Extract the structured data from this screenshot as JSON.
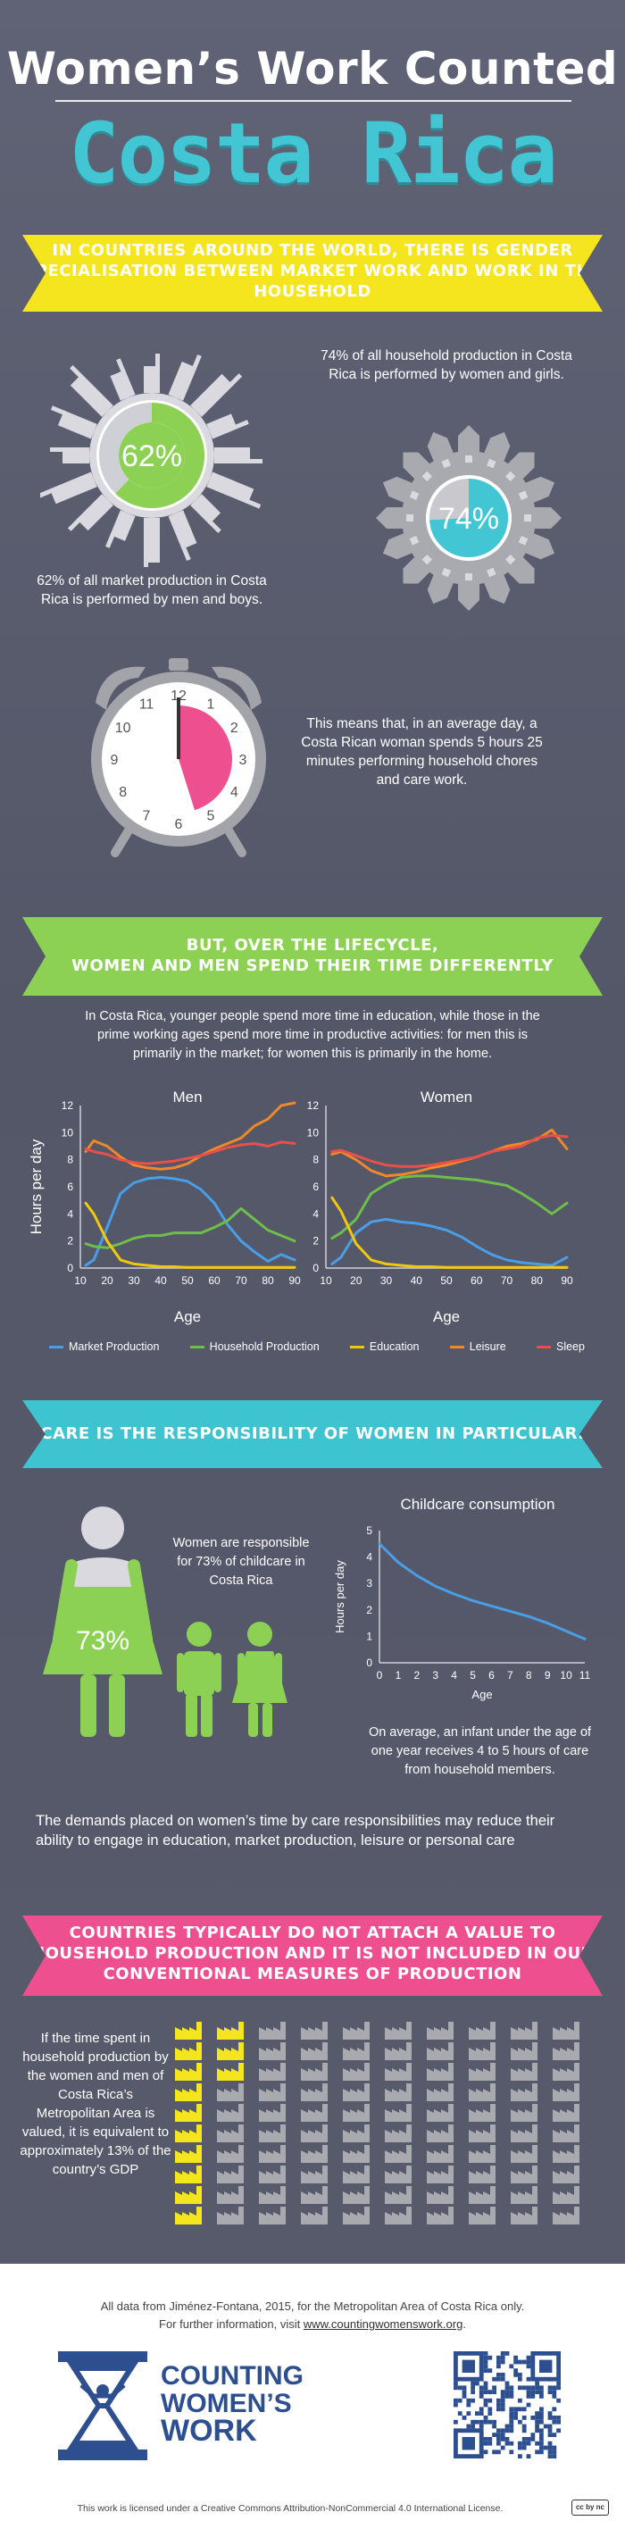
{
  "header": {
    "title_line1": "Women’s Work Counted",
    "title_line2": "Costa Rica"
  },
  "banner1": "IN COUNTRIES AROUND THE WORLD, THERE IS GENDER SPECIALISATION BETWEEN MARKET WORK AND WORK IN THE HOUSEHOLD",
  "market": {
    "percent_label": "62%",
    "value": 62,
    "caption": "62% of all market production in Costa Rica is performed by men and boys."
  },
  "household": {
    "percent_label": "74%",
    "value": 74,
    "caption": "74% of all household production in Costa Rica is performed by women and girls."
  },
  "clock": {
    "caption": "This means that, in an average day, a Costa Rican woman spends 5 hours 25 minutes performing household chores and care work.",
    "hours": 5.4167,
    "numbers": [
      "12",
      "1",
      "2",
      "3",
      "4",
      "5",
      "6",
      "7",
      "8",
      "9",
      "10",
      "11"
    ]
  },
  "banner2": {
    "line1": "BUT, OVER THE LIFECYCLE,",
    "line2": "WOMEN AND MEN SPEND THEIR TIME DIFFERENTLY"
  },
  "lifecycle_text": "In Costa Rica, younger people spend more time in education, while those in the prime working ages spend more time in productive activities: for men this is primarily in the market; for women this is primarily in the home.",
  "legend": [
    {
      "name": "Market Production",
      "color": "#4a9ee8"
    },
    {
      "name": "Household Production",
      "color": "#6dbf4a"
    },
    {
      "name": "Education",
      "color": "#f2c80f"
    },
    {
      "name": "Leisure",
      "color": "#f0882a"
    },
    {
      "name": "Sleep",
      "color": "#e8504a"
    }
  ],
  "banner3": "CARE IS THE RESPONSIBILITY OF WOMEN IN PARTICULAR.",
  "care": {
    "percent_label": "73%",
    "value": 73,
    "caption": "Women are responsible for 73% of childcare in Costa Rica"
  },
  "childcare_caption": "On average, an infant under the age of one year receives 4 to 5 hours of care from household members.",
  "demands_text": "The demands placed on women’s time by care responsibilities may reduce their ability to engage in education, market production, leisure or personal care",
  "banner4": "COUNTRIES TYPICALLY DO NOT ATTACH A VALUE TO HOUSEHOLD PRODUCTION AND IT IS NOT INCLUDED IN OUR CONVENTIONAL MEASURES OF PRODUCTION",
  "gdp": {
    "caption": "If the time spent in household production by the women and men of Costa Rica’s Metropolitan Area is valued, it is equivalent to approximately 13% of the country’s GDP",
    "highlighted": 13,
    "total": 100
  },
  "footer": {
    "source_line": "All data from Jiménez-Fontana, 2015, for the Metropolitan Area of Costa Rica only.",
    "info_prefix": "For further information, visit ",
    "link": "www.countingwomenswork.org",
    "info_suffix": ".",
    "logo_line1": "COUNTING",
    "logo_line2": "WOMEN’S",
    "logo_line3": "WORK",
    "license": "This work is licensed under a Creative Commons Attribution-NonCommercial 4.0 International License.",
    "cc_badge": "cc by nc"
  },
  "chart_data": [
    {
      "type": "line",
      "title": "Men",
      "xlabel": "Age",
      "ylabel": "Hours per day",
      "xlim": [
        10,
        90
      ],
      "ylim": [
        0,
        12
      ],
      "x_ticks": [
        10,
        20,
        30,
        40,
        50,
        60,
        70,
        80,
        90
      ],
      "y_ticks": [
        0,
        2,
        4,
        6,
        8,
        10,
        12
      ],
      "x": [
        12,
        15,
        20,
        25,
        30,
        35,
        40,
        45,
        50,
        55,
        60,
        65,
        70,
        75,
        80,
        85,
        90
      ],
      "series": [
        {
          "name": "Market Production",
          "values": [
            0.2,
            0.6,
            3.0,
            5.5,
            6.3,
            6.6,
            6.7,
            6.6,
            6.4,
            5.8,
            4.8,
            3.2,
            2.0,
            1.2,
            0.5,
            1.0,
            0.6
          ]
        },
        {
          "name": "Household Production",
          "values": [
            1.8,
            1.6,
            1.5,
            1.8,
            2.2,
            2.4,
            2.4,
            2.6,
            2.6,
            2.6,
            3.0,
            3.5,
            4.4,
            3.6,
            2.8,
            2.4,
            2.0
          ]
        },
        {
          "name": "Education",
          "values": [
            4.8,
            4.0,
            2.0,
            0.6,
            0.3,
            0.2,
            0.1,
            0.1,
            0.05,
            0.05,
            0.05,
            0.05,
            0.05,
            0.05,
            0.05,
            0.05,
            0.05
          ]
        },
        {
          "name": "Leisure",
          "values": [
            8.6,
            9.4,
            9.0,
            8.2,
            7.6,
            7.4,
            7.3,
            7.4,
            7.7,
            8.3,
            8.8,
            9.2,
            9.6,
            10.5,
            11.0,
            12.0,
            12.2
          ]
        },
        {
          "name": "Sleep",
          "values": [
            8.8,
            8.6,
            8.4,
            8.0,
            7.8,
            7.7,
            7.8,
            7.9,
            8.1,
            8.3,
            8.6,
            8.9,
            9.1,
            9.2,
            9.0,
            9.3,
            9.2
          ]
        }
      ]
    },
    {
      "type": "line",
      "title": "Women",
      "xlabel": "Age",
      "ylabel": "",
      "xlim": [
        10,
        90
      ],
      "ylim": [
        0,
        12
      ],
      "x_ticks": [
        10,
        20,
        30,
        40,
        50,
        60,
        70,
        80,
        90
      ],
      "y_ticks": [
        0,
        2,
        4,
        6,
        8,
        10,
        12
      ],
      "x": [
        12,
        15,
        20,
        25,
        30,
        35,
        40,
        45,
        50,
        55,
        60,
        65,
        70,
        75,
        80,
        85,
        90
      ],
      "series": [
        {
          "name": "Market Production",
          "values": [
            0.3,
            0.8,
            2.6,
            3.4,
            3.6,
            3.4,
            3.3,
            3.1,
            2.8,
            2.3,
            1.6,
            1.0,
            0.6,
            0.4,
            0.3,
            0.2,
            0.8
          ]
        },
        {
          "name": "Household Production",
          "values": [
            2.2,
            2.6,
            3.6,
            5.5,
            6.2,
            6.7,
            6.8,
            6.8,
            6.7,
            6.6,
            6.5,
            6.3,
            6.1,
            5.5,
            4.8,
            4.0,
            4.8
          ]
        },
        {
          "name": "Education",
          "values": [
            5.2,
            4.2,
            1.8,
            0.6,
            0.3,
            0.2,
            0.1,
            0.1,
            0.05,
            0.05,
            0.05,
            0.05,
            0.05,
            0.05,
            0.05,
            0.05,
            0.05
          ]
        },
        {
          "name": "Leisure",
          "values": [
            8.4,
            8.6,
            8.0,
            7.2,
            6.8,
            6.9,
            7.1,
            7.4,
            7.6,
            7.9,
            8.2,
            8.6,
            9.0,
            9.2,
            9.5,
            10.2,
            8.8
          ]
        },
        {
          "name": "Sleep",
          "values": [
            8.6,
            8.7,
            8.3,
            7.9,
            7.6,
            7.5,
            7.5,
            7.6,
            7.8,
            8.0,
            8.2,
            8.6,
            8.8,
            9.0,
            9.6,
            9.8,
            9.7
          ]
        }
      ]
    },
    {
      "type": "line",
      "title": "Childcare consumption",
      "xlabel": "Age",
      "ylabel": "Hours per day",
      "xlim": [
        0,
        11
      ],
      "ylim": [
        0,
        5
      ],
      "x_ticks": [
        0,
        1,
        2,
        3,
        4,
        5,
        6,
        7,
        8,
        9,
        10,
        11
      ],
      "y_ticks": [
        0,
        1,
        2,
        3,
        4,
        5
      ],
      "x": [
        0,
        1,
        2,
        3,
        4,
        5,
        6,
        7,
        8,
        9,
        10,
        11
      ],
      "series": [
        {
          "name": "",
          "values": [
            4.5,
            3.8,
            3.3,
            2.9,
            2.6,
            2.35,
            2.15,
            1.95,
            1.75,
            1.5,
            1.2,
            0.9
          ]
        }
      ]
    }
  ]
}
